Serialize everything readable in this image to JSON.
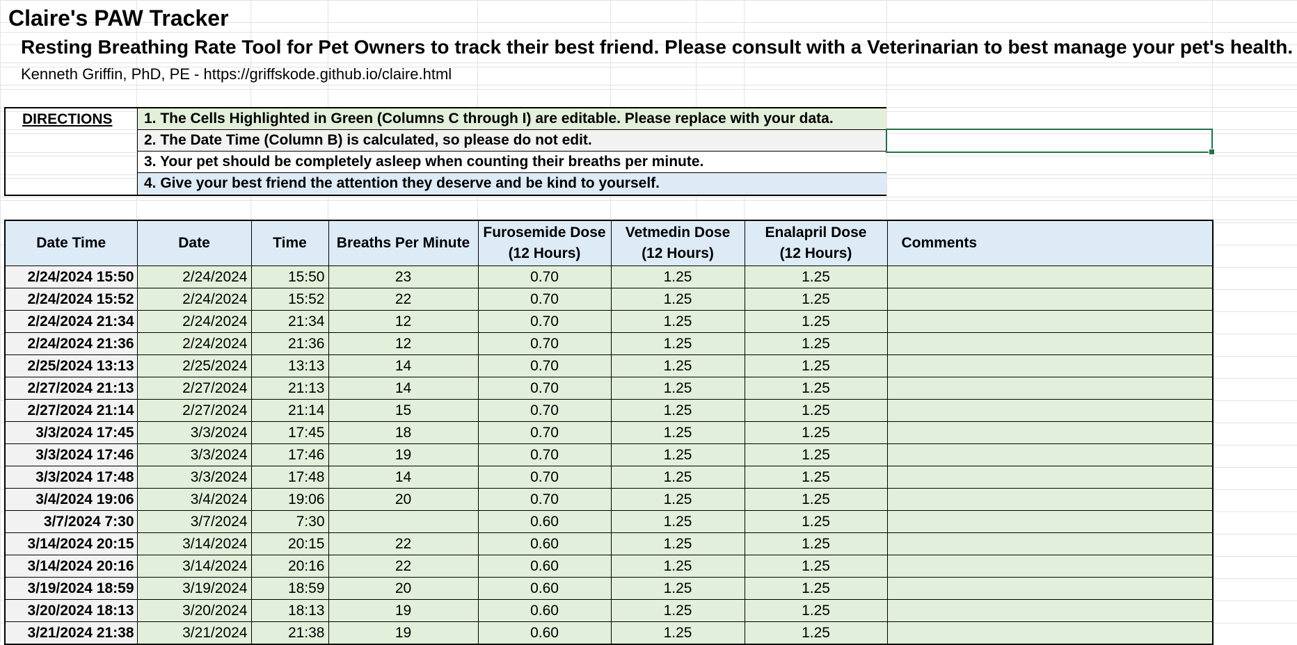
{
  "colors": {
    "editable_fill": "#e2efda",
    "calculated_fill": "#f2f2f2",
    "header_fill": "#ddebf7",
    "selection": "#217346"
  },
  "sheet": {
    "title": "Claire's PAW Tracker",
    "subtitle": "Resting Breathing Rate Tool for Pet Owners to track their best friend. Please consult with a Veterinarian to best manage your pet's health.",
    "author": "Kenneth Griffin, PhD, PE - https://griffskode.github.io/claire.html"
  },
  "directions": {
    "label": "DIRECTIONS",
    "items": [
      "1. The Cells Highlighted in Green (Columns C through I) are editable. Please replace with your data.",
      "2. The Date Time (Column B) is calculated, so please do not edit.",
      "3. Your pet should be completely asleep when counting their breaths per minute.",
      "4. Give your best friend the attention they deserve and be kind to yourself."
    ]
  },
  "table": {
    "headers": {
      "datetime": "Date Time",
      "date": "Date",
      "time": "Time",
      "bpm": "Breaths Per Minute",
      "furosemide_1": "Furosemide Dose",
      "furosemide_2": "(12 Hours)",
      "vetmedin_1": "Vetmedin Dose",
      "vetmedin_2": "(12 Hours)",
      "enalapril_1": "Enalapril Dose",
      "enalapril_2": "(12 Hours)",
      "comments": "Comments"
    },
    "rows": [
      {
        "datetime": "2/24/2024 15:50",
        "date": "2/24/2024",
        "time": "15:50",
        "bpm": "23",
        "furosemide": "0.70",
        "vetmedin": "1.25",
        "enalapril": "1.25",
        "comments": ""
      },
      {
        "datetime": "2/24/2024 15:52",
        "date": "2/24/2024",
        "time": "15:52",
        "bpm": "22",
        "furosemide": "0.70",
        "vetmedin": "1.25",
        "enalapril": "1.25",
        "comments": ""
      },
      {
        "datetime": "2/24/2024 21:34",
        "date": "2/24/2024",
        "time": "21:34",
        "bpm": "12",
        "furosemide": "0.70",
        "vetmedin": "1.25",
        "enalapril": "1.25",
        "comments": ""
      },
      {
        "datetime": "2/24/2024 21:36",
        "date": "2/24/2024",
        "time": "21:36",
        "bpm": "12",
        "furosemide": "0.70",
        "vetmedin": "1.25",
        "enalapril": "1.25",
        "comments": ""
      },
      {
        "datetime": "2/25/2024 13:13",
        "date": "2/25/2024",
        "time": "13:13",
        "bpm": "14",
        "furosemide": "0.70",
        "vetmedin": "1.25",
        "enalapril": "1.25",
        "comments": ""
      },
      {
        "datetime": "2/27/2024 21:13",
        "date": "2/27/2024",
        "time": "21:13",
        "bpm": "14",
        "furosemide": "0.70",
        "vetmedin": "1.25",
        "enalapril": "1.25",
        "comments": ""
      },
      {
        "datetime": "2/27/2024 21:14",
        "date": "2/27/2024",
        "time": "21:14",
        "bpm": "15",
        "furosemide": "0.70",
        "vetmedin": "1.25",
        "enalapril": "1.25",
        "comments": ""
      },
      {
        "datetime": "3/3/2024 17:45",
        "date": "3/3/2024",
        "time": "17:45",
        "bpm": "18",
        "furosemide": "0.70",
        "vetmedin": "1.25",
        "enalapril": "1.25",
        "comments": ""
      },
      {
        "datetime": "3/3/2024 17:46",
        "date": "3/3/2024",
        "time": "17:46",
        "bpm": "19",
        "furosemide": "0.70",
        "vetmedin": "1.25",
        "enalapril": "1.25",
        "comments": ""
      },
      {
        "datetime": "3/3/2024 17:48",
        "date": "3/3/2024",
        "time": "17:48",
        "bpm": "14",
        "furosemide": "0.70",
        "vetmedin": "1.25",
        "enalapril": "1.25",
        "comments": ""
      },
      {
        "datetime": "3/4/2024 19:06",
        "date": "3/4/2024",
        "time": "19:06",
        "bpm": "20",
        "furosemide": "0.70",
        "vetmedin": "1.25",
        "enalapril": "1.25",
        "comments": ""
      },
      {
        "datetime": "3/7/2024 7:30",
        "date": "3/7/2024",
        "time": "7:30",
        "bpm": "",
        "furosemide": "0.60",
        "vetmedin": "1.25",
        "enalapril": "1.25",
        "comments": ""
      },
      {
        "datetime": "3/14/2024 20:15",
        "date": "3/14/2024",
        "time": "20:15",
        "bpm": "22",
        "furosemide": "0.60",
        "vetmedin": "1.25",
        "enalapril": "1.25",
        "comments": ""
      },
      {
        "datetime": "3/14/2024 20:16",
        "date": "3/14/2024",
        "time": "20:16",
        "bpm": "22",
        "furosemide": "0.60",
        "vetmedin": "1.25",
        "enalapril": "1.25",
        "comments": ""
      },
      {
        "datetime": "3/19/2024 18:59",
        "date": "3/19/2024",
        "time": "18:59",
        "bpm": "20",
        "furosemide": "0.60",
        "vetmedin": "1.25",
        "enalapril": "1.25",
        "comments": ""
      },
      {
        "datetime": "3/20/2024 18:13",
        "date": "3/20/2024",
        "time": "18:13",
        "bpm": "19",
        "furosemide": "0.60",
        "vetmedin": "1.25",
        "enalapril": "1.25",
        "comments": ""
      },
      {
        "datetime": "3/21/2024 21:38",
        "date": "3/21/2024",
        "time": "21:38",
        "bpm": "19",
        "furosemide": "0.60",
        "vetmedin": "1.25",
        "enalapril": "1.25",
        "comments": ""
      }
    ]
  }
}
